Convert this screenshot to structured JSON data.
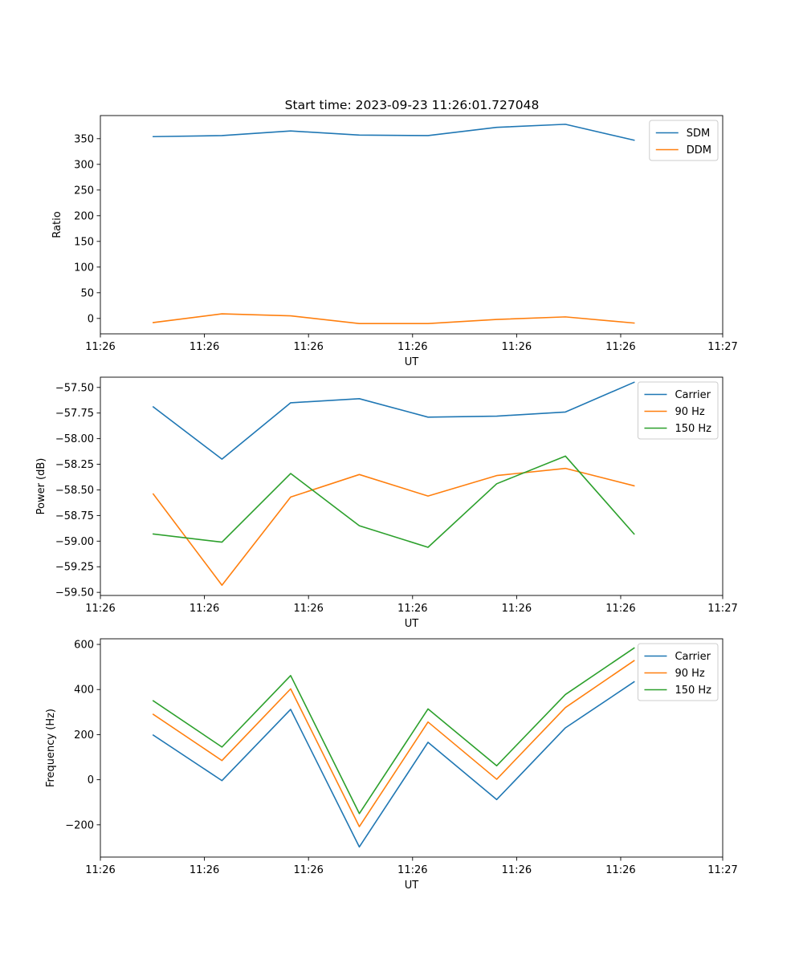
{
  "title": "Start time: 2023-09-23 11:26:01.727048",
  "chart_data": [
    {
      "type": "line",
      "title": "Start time: 2023-09-23 11:26:01.727048",
      "xlabel": "UT",
      "ylabel": "Ratio",
      "x": [
        1,
        2,
        3,
        4,
        5,
        6,
        7,
        8
      ],
      "xlim": [
        0.23,
        9.29
      ],
      "x_ticks": [
        0.23,
        1.745,
        3.26,
        4.775,
        6.29,
        7.805,
        9.29
      ],
      "x_tick_labels": [
        "11:26",
        "11:26",
        "11:26",
        "11:26",
        "11:26",
        "11:26",
        "11:27"
      ],
      "ylim": [
        -30,
        395
      ],
      "y_ticks": [
        0,
        50,
        100,
        150,
        200,
        250,
        300,
        350
      ],
      "y_tick_labels": [
        "0",
        "50",
        "100",
        "150",
        "200",
        "250",
        "300",
        "350"
      ],
      "legend": "top-right",
      "series": [
        {
          "name": "SDM",
          "color": "#1f77b4",
          "values": [
            354,
            356,
            365,
            357,
            356,
            372,
            378,
            347
          ]
        },
        {
          "name": "DDM",
          "color": "#ff7f0e",
          "values": [
            -8,
            9,
            5,
            -10,
            -10,
            -2,
            3,
            -9
          ]
        }
      ]
    },
    {
      "type": "line",
      "title": "",
      "xlabel": "UT",
      "ylabel": "Power (dB)",
      "x": [
        1,
        2,
        3,
        4,
        5,
        6,
        7,
        8
      ],
      "xlim": [
        0.23,
        9.29
      ],
      "x_ticks": [
        0.23,
        1.745,
        3.26,
        4.775,
        6.29,
        7.805,
        9.29
      ],
      "x_tick_labels": [
        "11:26",
        "11:26",
        "11:26",
        "11:26",
        "11:26",
        "11:26",
        "11:27"
      ],
      "ylim": [
        -59.53,
        -57.4
      ],
      "y_ticks": [
        -59.5,
        -59.25,
        -59.0,
        -58.75,
        -58.5,
        -58.25,
        -58.0,
        -57.75,
        -57.5
      ],
      "y_tick_labels": [
        "−59.50",
        "−59.25",
        "−59.00",
        "−58.75",
        "−58.50",
        "−58.25",
        "−58.00",
        "−57.75",
        "−57.50"
      ],
      "legend": "top-right",
      "series": [
        {
          "name": "Carrier",
          "color": "#1f77b4",
          "values": [
            -57.69,
            -58.2,
            -57.65,
            -57.61,
            -57.79,
            -57.78,
            -57.74,
            -57.45
          ]
        },
        {
          "name": "90 Hz",
          "color": "#ff7f0e",
          "values": [
            -58.54,
            -59.43,
            -58.57,
            -58.35,
            -58.56,
            -58.36,
            -58.29,
            -58.46
          ]
        },
        {
          "name": "150 Hz",
          "color": "#2ca02c",
          "values": [
            -58.93,
            -59.01,
            -58.34,
            -58.85,
            -59.06,
            -58.44,
            -58.17,
            -58.93
          ]
        }
      ]
    },
    {
      "type": "line",
      "title": "",
      "xlabel": "UT",
      "ylabel": "Frequency (Hz)",
      "x": [
        1,
        2,
        3,
        4,
        5,
        6,
        7,
        8
      ],
      "xlim": [
        0.23,
        9.29
      ],
      "x_ticks": [
        0.23,
        1.745,
        3.26,
        4.775,
        6.29,
        7.805,
        9.29
      ],
      "x_tick_labels": [
        "11:26",
        "11:26",
        "11:26",
        "11:26",
        "11:26",
        "11:26",
        "11:27"
      ],
      "ylim": [
        -343,
        625
      ],
      "y_ticks": [
        -200,
        0,
        200,
        400,
        600
      ],
      "y_tick_labels": [
        "−200",
        "0",
        "200",
        "400",
        "600"
      ],
      "legend": "top-right",
      "series": [
        {
          "name": "Carrier",
          "color": "#1f77b4",
          "values": [
            198,
            -4,
            312,
            -298,
            166,
            -88,
            230,
            434
          ]
        },
        {
          "name": "90 Hz",
          "color": "#ff7f0e",
          "values": [
            290,
            85,
            403,
            -208,
            256,
            2,
            320,
            528
          ]
        },
        {
          "name": "150 Hz",
          "color": "#2ca02c",
          "values": [
            350,
            145,
            462,
            -150,
            314,
            62,
            378,
            584
          ]
        }
      ]
    }
  ]
}
